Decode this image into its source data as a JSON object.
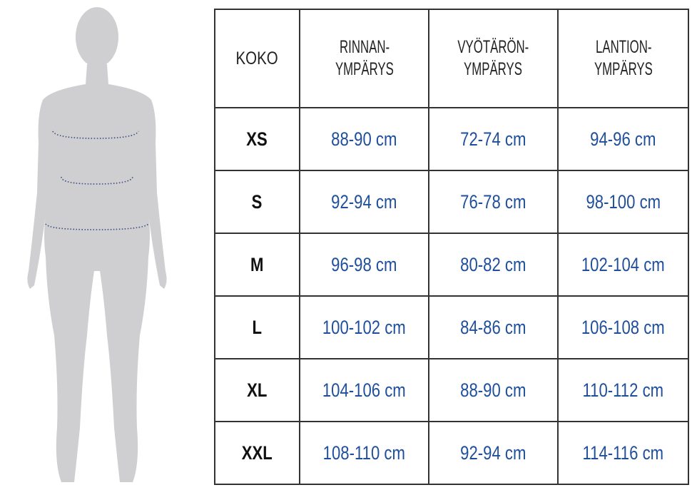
{
  "table": {
    "headers": [
      {
        "line1": "KOKO",
        "line2": ""
      },
      {
        "line1": "RINNAN-",
        "line2": "YMPÄRYS"
      },
      {
        "line1": "VYÖTÄRÖN-",
        "line2": "YMPÄRYS"
      },
      {
        "line1": "LANTION-",
        "line2": "YMPÄRYS"
      }
    ],
    "rows": [
      {
        "size": "XS",
        "chest": "88-90 cm",
        "waist": "72-74 cm",
        "hip": "94-96 cm"
      },
      {
        "size": "S",
        "chest": "92-94 cm",
        "waist": "76-78 cm",
        "hip": "98-100 cm"
      },
      {
        "size": "M",
        "chest": "96-98 cm",
        "waist": "80-82 cm",
        "hip": "102-104 cm"
      },
      {
        "size": "L",
        "chest": "100-102 cm",
        "waist": "84-86 cm",
        "hip": "106-108 cm"
      },
      {
        "size": "XL",
        "chest": "104-106 cm",
        "waist": "88-90 cm",
        "hip": "110-112 cm"
      },
      {
        "size": "XXL",
        "chest": "108-110 cm",
        "waist": "92-94 cm",
        "hip": "114-116 cm"
      }
    ]
  },
  "colors": {
    "value_text": "#1f4f9c",
    "silhouette": "#cfcfd1",
    "measure_line": "#3a4a7a"
  }
}
